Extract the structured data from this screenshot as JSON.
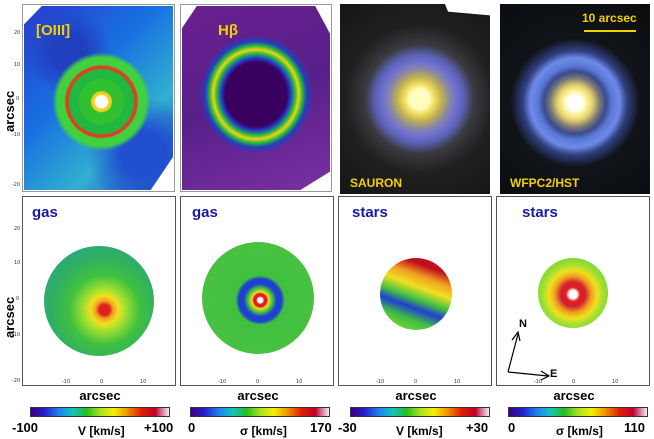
{
  "top_row": {
    "panel1_label": "[OIII]",
    "panel2_label": "Hβ",
    "panel3_label": "SAURON",
    "panel4_label": "WFPC2/HST",
    "scale_bar_label": "10 arcsec"
  },
  "bottom_row": {
    "panel1_label": "gas",
    "panel2_label": "gas",
    "panel3_label": "stars",
    "panel4_label": "stars"
  },
  "axes": {
    "xlabel": "arcsec",
    "ylabel": "arcsec",
    "x_ticks": [
      "-10",
      "0",
      "10"
    ],
    "y_ticks": [
      "20",
      "10",
      "0",
      "-10",
      "-20"
    ]
  },
  "compass": {
    "north": "N",
    "east": "E"
  },
  "colorbars": [
    {
      "min": "-100",
      "quantity": "V [km/s]",
      "max": "+100"
    },
    {
      "min": "0",
      "quantity": "σ [km/s]",
      "max": "170"
    },
    {
      "min": "-30",
      "quantity": "V [km/s]",
      "max": "+30"
    },
    {
      "min": "0",
      "quantity": "σ [km/s]",
      "max": "110"
    }
  ]
}
